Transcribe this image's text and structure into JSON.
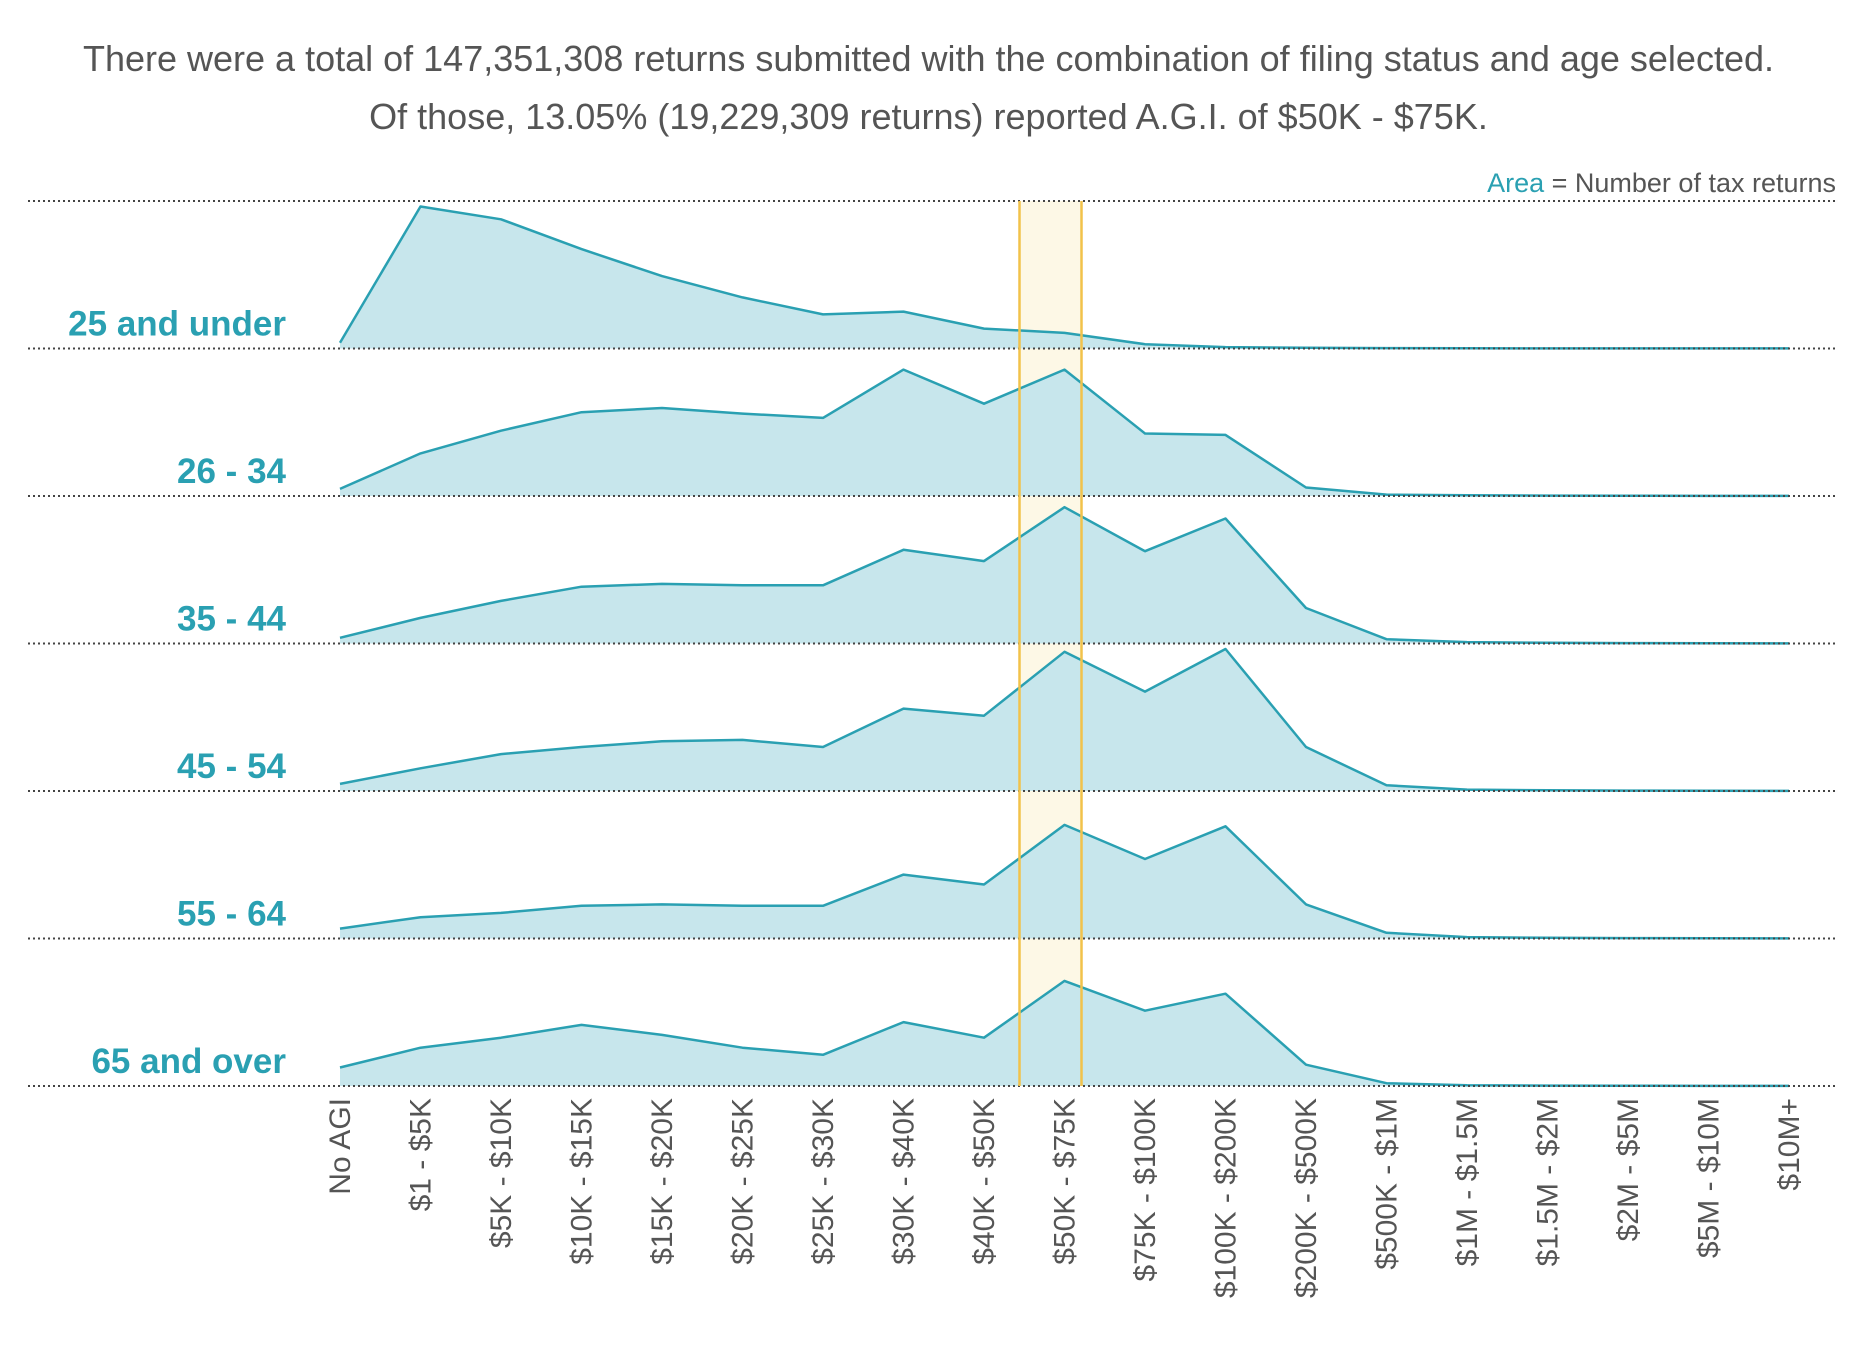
{
  "header": {
    "line1": "There were a total of 147,351,308 returns submitted with the combination of filing status and age selected.",
    "line2": "Of those, 13.05% (19,229,309 returns) reported A.G.I. of $50K - $75K."
  },
  "legend": {
    "key": "Area",
    "text": " = Number of tax returns"
  },
  "colors": {
    "area_fill": "#c7e6ec",
    "area_stroke": "#2aa0b2",
    "label": "#2aa0b2",
    "highlight_fill": "#fdf8e6",
    "highlight_stroke": "#f2c24a",
    "baseline": "#444444"
  },
  "chart_data": {
    "type": "area",
    "layout": "small-multiples (ridgeline), shared x-axis, each row scaled independently",
    "categories": [
      "No AGI",
      "$1 - $5K",
      "$5K - $10K",
      "$10K - $15K",
      "$15K - $20K",
      "$20K - $25K",
      "$25K - $30K",
      "$30K - $40K",
      "$40K - $50K",
      "$50K - $75K",
      "$75K - $100K",
      "$100K - $200K",
      "$200K - $500K",
      "$500K - $1M",
      "$1M - $1.5M",
      "$1.5M - $2M",
      "$2M - $5M",
      "$5M - $10M",
      "$10M+"
    ],
    "highlight_category": "$50K - $75K",
    "series": [
      {
        "name": "25 and under",
        "values": [
          0.04,
          1.0,
          0.91,
          0.7,
          0.51,
          0.36,
          0.24,
          0.26,
          0.14,
          0.11,
          0.03,
          0.01,
          0.005,
          0.003,
          0.002,
          0.001,
          0.001,
          0.001,
          0.001
        ]
      },
      {
        "name": "26 - 34",
        "values": [
          0.05,
          0.3,
          0.46,
          0.59,
          0.62,
          0.58,
          0.55,
          0.89,
          0.65,
          0.89,
          0.44,
          0.43,
          0.06,
          0.01,
          0.005,
          0.003,
          0.002,
          0.001,
          0.001
        ]
      },
      {
        "name": "35 - 44",
        "values": [
          0.04,
          0.18,
          0.3,
          0.4,
          0.42,
          0.41,
          0.41,
          0.66,
          0.58,
          0.96,
          0.65,
          0.88,
          0.25,
          0.03,
          0.01,
          0.005,
          0.003,
          0.002,
          0.001
        ]
      },
      {
        "name": "45 - 54",
        "values": [
          0.05,
          0.16,
          0.26,
          0.31,
          0.35,
          0.36,
          0.31,
          0.58,
          0.53,
          0.98,
          0.7,
          1.0,
          0.31,
          0.04,
          0.01,
          0.005,
          0.003,
          0.002,
          0.001
        ]
      },
      {
        "name": "55 - 64",
        "values": [
          0.07,
          0.15,
          0.18,
          0.23,
          0.24,
          0.23,
          0.23,
          0.45,
          0.38,
          0.8,
          0.56,
          0.79,
          0.24,
          0.04,
          0.01,
          0.005,
          0.003,
          0.002,
          0.001
        ]
      },
      {
        "name": "65 and over",
        "values": [
          0.13,
          0.27,
          0.34,
          0.43,
          0.36,
          0.27,
          0.22,
          0.45,
          0.34,
          0.74,
          0.53,
          0.65,
          0.15,
          0.02,
          0.005,
          0.003,
          0.002,
          0.001,
          0.001
        ]
      }
    ],
    "xlabel": "",
    "ylabel": "",
    "grid": false
  }
}
